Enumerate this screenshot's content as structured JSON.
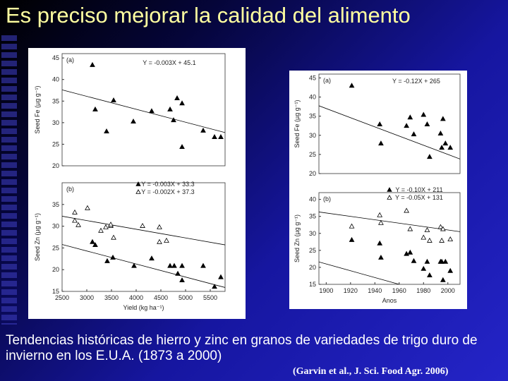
{
  "slide": {
    "title": "Es preciso mejorar la calidad del alimento",
    "caption": "Tendencias históricas de hierro y zinc en granos de variedades de trigo duro de invierno en los E.U.A. (1873 a 2000)",
    "citation": "(Garvin et al., J. Sci. Food Agr. 2006)"
  },
  "chart_data": [
    {
      "type": "scatter",
      "panel": "(a)",
      "ylabel": "Seed Fe (µg g⁻¹)",
      "xlim": [
        2500,
        5800
      ],
      "ylim": [
        20,
        46
      ],
      "yticks": [
        20,
        25,
        30,
        35,
        40,
        45
      ],
      "series": [
        {
          "name": "Y = -0.003X + 45.1",
          "marker": "filled",
          "color": "#000000",
          "trend": {
            "slope": -0.003,
            "intercept": 45.1
          },
          "x": [
            3114,
            3171,
            3400,
            3543,
            3943,
            4314,
            4686,
            4757,
            4829,
            4929,
            4929,
            5357,
            5586,
            5714
          ],
          "values": [
            43.4,
            33.1,
            28.0,
            35.2,
            30.3,
            32.7,
            33.1,
            30.6,
            35.7,
            34.5,
            24.4,
            28.2,
            26.7,
            26.7
          ]
        }
      ]
    },
    {
      "type": "scatter",
      "panel": "(b)",
      "ylabel": "Seed Zn (µg g⁻¹)",
      "xlabel": "Yield (kg ha⁻¹)",
      "xlim": [
        2500,
        5800
      ],
      "xticks": [
        2500,
        3000,
        3500,
        4000,
        4500,
        5000,
        5500
      ],
      "ylim": [
        15,
        40
      ],
      "yticks": [
        15,
        20,
        25,
        30,
        35
      ],
      "series": [
        {
          "name": "Y = -0.003X + 33.3",
          "marker": "filled",
          "color": "#000000",
          "trend": {
            "slope": -0.003,
            "intercept": 33.3
          },
          "x": [
            3114,
            3171,
            3414,
            3529,
            3957,
            4314,
            4686,
            4771,
            4843,
            4929,
            4929,
            5357,
            5586,
            5714
          ],
          "values": [
            26.4,
            25.7,
            22.0,
            22.8,
            20.9,
            22.6,
            20.9,
            20.9,
            19.1,
            20.9,
            17.6,
            20.9,
            16.1,
            18.3
          ]
        },
        {
          "name": "Y = -0.002X + 37.3",
          "marker": "open",
          "color": "#000000",
          "trend": {
            "slope": -0.002,
            "intercept": 37.3
          },
          "x": [
            2757,
            2757,
            2829,
            3014,
            3286,
            3386,
            3486,
            3486,
            3543,
            4129,
            4471,
            4471,
            4614
          ],
          "values": [
            33.2,
            31.3,
            30.3,
            34.2,
            29.0,
            29.8,
            30.1,
            30.4,
            27.4,
            30.1,
            29.8,
            26.4,
            26.7
          ]
        }
      ]
    },
    {
      "type": "scatter",
      "panel": "(a)",
      "ylabel": "Seed Fe (µg g⁻¹)",
      "xlim": [
        1894,
        2010
      ],
      "ylim": [
        20,
        46
      ],
      "yticks": [
        20,
        25,
        30,
        35,
        40,
        45
      ],
      "series": [
        {
          "name": "Y = -0.12X + 265",
          "marker": "filled",
          "color": "#000000",
          "trend": {
            "slope": -0.12,
            "intercept": 265
          },
          "x": [
            1921,
            1944,
            1945,
            1969,
            1966,
            1972,
            1980,
            1983,
            1985,
            1994,
            1996,
            1995,
            1998,
            2002
          ],
          "values": [
            43.0,
            32.9,
            27.9,
            34.7,
            32.5,
            30.3,
            35.4,
            32.9,
            24.4,
            30.5,
            34.3,
            26.8,
            27.9,
            26.8
          ]
        }
      ]
    },
    {
      "type": "scatter",
      "panel": "(b)",
      "ylabel": "Seed Zn (µg g⁻¹)",
      "xlabel": "Anos",
      "xlim": [
        1894,
        2010
      ],
      "xticks": [
        1900,
        1920,
        1940,
        1960,
        1980,
        2000
      ],
      "ylim": [
        15,
        42
      ],
      "yticks": [
        15,
        20,
        25,
        30,
        35,
        40
      ],
      "series": [
        {
          "name": "Y = -0.10X + 211",
          "marker": "filled",
          "color": "#000000",
          "trend": {
            "slope": -0.1,
            "intercept": 211
          },
          "x": [
            1921,
            1944,
            1945,
            1966,
            1969,
            1972,
            1980,
            1983,
            1985,
            1994,
            1995,
            1998,
            1996,
            2002
          ],
          "values": [
            28.1,
            27.1,
            22.9,
            24.0,
            24.4,
            21.9,
            19.6,
            21.7,
            17.7,
            21.7,
            21.7,
            21.7,
            16.3,
            19.0
          ]
        },
        {
          "name": "Y = -0.05X + 131",
          "marker": "open",
          "color": "#000000",
          "trend": {
            "slope": -0.05,
            "intercept": 131
          },
          "x": [
            1921,
            1944,
            1945,
            1966,
            1969,
            1980,
            1983,
            1985,
            1994,
            1995,
            1996,
            2002
          ],
          "values": [
            32.1,
            35.4,
            33.1,
            36.7,
            31.3,
            28.8,
            31.0,
            27.9,
            31.9,
            27.9,
            31.3,
            28.3
          ]
        }
      ]
    }
  ]
}
